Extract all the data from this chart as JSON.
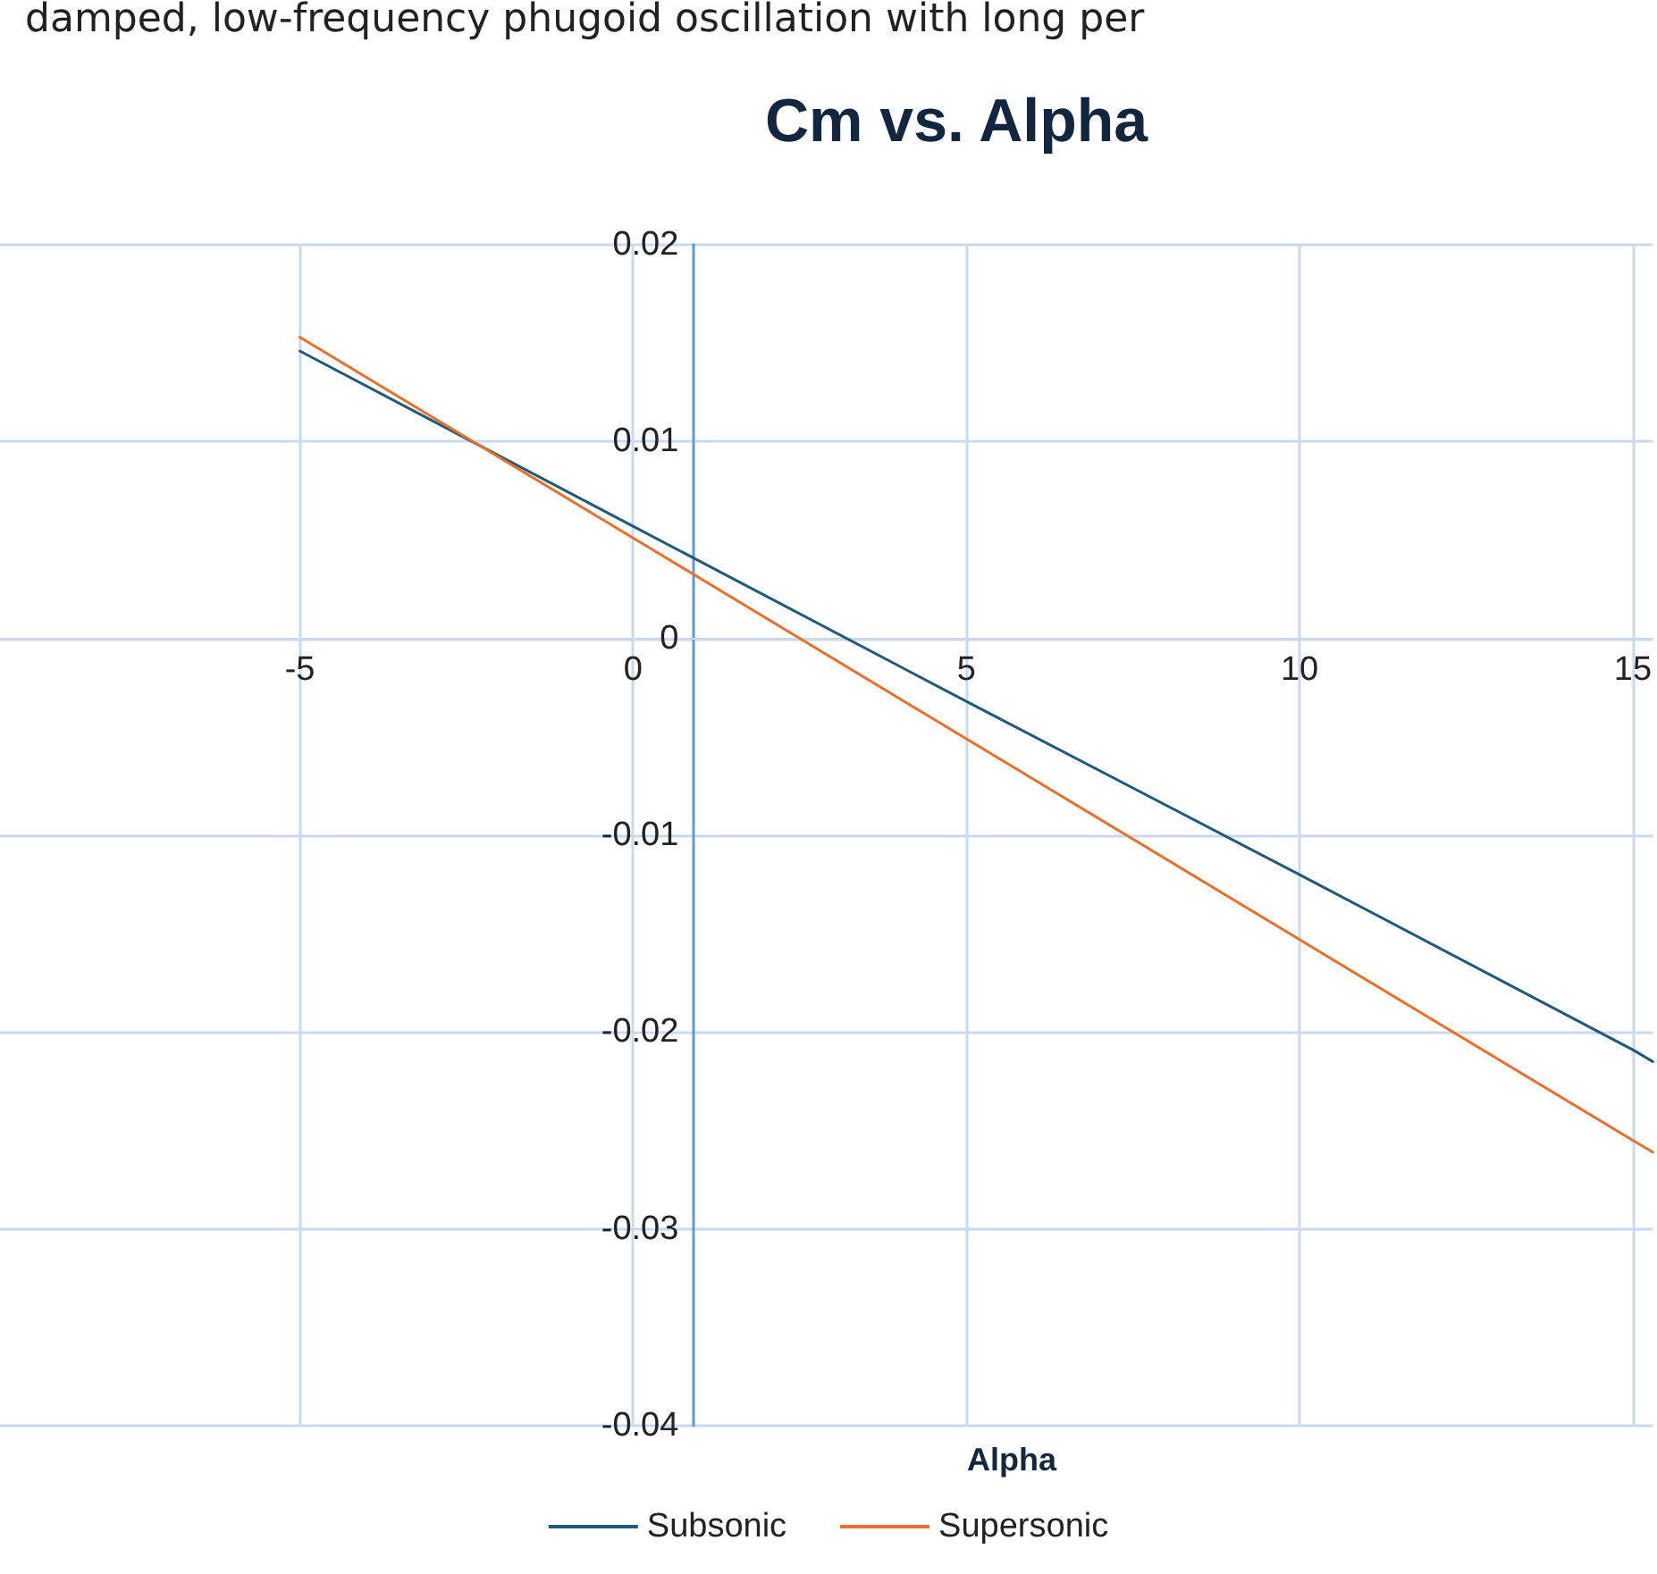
{
  "chart_data": {
    "type": "line",
    "title": "Cm vs. Alpha",
    "xlabel": "Alpha",
    "annotations": [
      "damped, low-frequency phugoid oscillation with long per"
    ],
    "x": [
      -5,
      0,
      5,
      10,
      15,
      15.3
    ],
    "series": [
      {
        "name": "Subsonic",
        "color": "#1f5a7a",
        "values": [
          0.0146,
          0.0057,
          -0.0032,
          -0.012,
          -0.0209,
          -0.0215
        ]
      },
      {
        "name": "Supersonic",
        "color": "#e8702a",
        "values": [
          0.0153,
          0.0051,
          -0.0051,
          -0.0153,
          -0.0255,
          -0.0261
        ]
      }
    ],
    "xlim": [
      -9.5,
      15.3
    ],
    "xticks": [
      -5,
      0,
      5,
      10,
      15
    ],
    "ylim": [
      -0.04,
      0.02
    ],
    "yticks": [
      -0.04,
      -0.03,
      -0.02,
      -0.01,
      0,
      0.01,
      0.02
    ],
    "grid": true,
    "legend": "bottom",
    "marker": "none",
    "line_style": "solid"
  }
}
